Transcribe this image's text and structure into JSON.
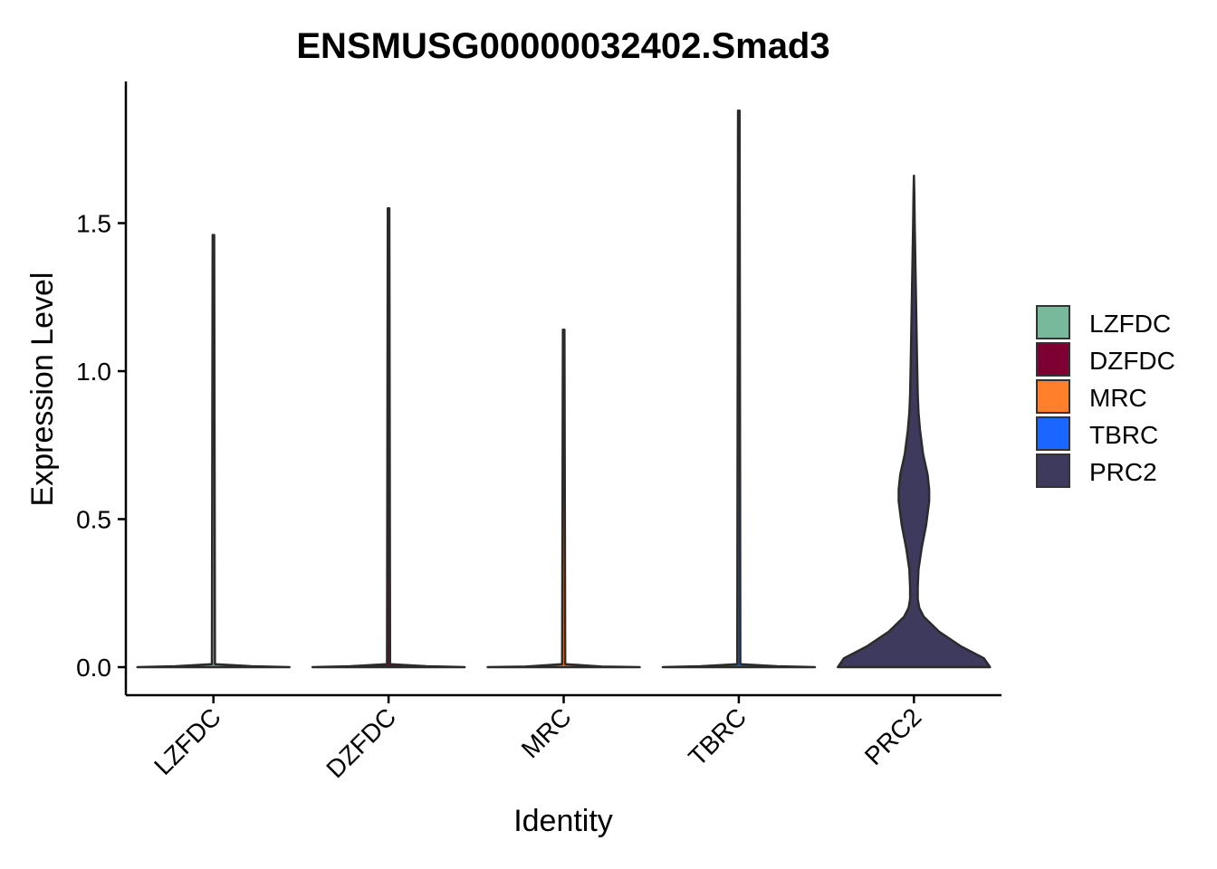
{
  "chart_data": {
    "type": "violin",
    "title": "ENSMUSG00000032402.Smad3",
    "xlabel": "Identity",
    "ylabel": "Expression Level",
    "categories": [
      "LZFDC",
      "DZFDC",
      "MRC",
      "TBRC",
      "PRC2"
    ],
    "y_ticks": [
      "0.0",
      "0.5",
      "1.0",
      "1.5"
    ],
    "ylim": [
      -0.09,
      1.96
    ],
    "grid": false,
    "legend_position": "right",
    "series": [
      {
        "name": "LZFDC",
        "color": "#78B99C",
        "max": 1.46,
        "density": [
          [
            0,
            1.0
          ],
          [
            0.003,
            0.5
          ],
          [
            0.01,
            0.02
          ],
          [
            1.46,
            0.01
          ]
        ]
      },
      {
        "name": "DZFDC",
        "color": "#7D0033",
        "max": 1.55,
        "density": [
          [
            0,
            1.0
          ],
          [
            0.003,
            0.5
          ],
          [
            0.01,
            0.02
          ],
          [
            1.55,
            0.01
          ]
        ]
      },
      {
        "name": "MRC",
        "color": "#FF7F2A",
        "max": 1.14,
        "density": [
          [
            0,
            1.0
          ],
          [
            0.002,
            0.5
          ],
          [
            0.01,
            0.02
          ],
          [
            1.14,
            0.01
          ]
        ]
      },
      {
        "name": "TBRC",
        "color": "#1A66FF",
        "max": 1.88,
        "density": [
          [
            0,
            1.0
          ],
          [
            0.003,
            0.5
          ],
          [
            0.01,
            0.02
          ],
          [
            1.88,
            0.01
          ]
        ]
      },
      {
        "name": "PRC2",
        "color": "#3E3A5E",
        "max": 1.66,
        "density": [
          [
            0,
            1.0
          ],
          [
            0.03,
            0.92
          ],
          [
            0.07,
            0.62
          ],
          [
            0.12,
            0.33
          ],
          [
            0.17,
            0.13
          ],
          [
            0.2,
            0.07
          ],
          [
            0.23,
            0.05
          ],
          [
            0.27,
            0.05
          ],
          [
            0.33,
            0.06
          ],
          [
            0.4,
            0.1
          ],
          [
            0.48,
            0.16
          ],
          [
            0.56,
            0.2
          ],
          [
            0.6,
            0.2
          ],
          [
            0.65,
            0.18
          ],
          [
            0.72,
            0.12
          ],
          [
            0.8,
            0.08
          ],
          [
            0.86,
            0.06
          ],
          [
            0.92,
            0.05
          ],
          [
            1.05,
            0.04
          ],
          [
            1.2,
            0.03
          ],
          [
            1.35,
            0.02
          ],
          [
            1.5,
            0.01
          ],
          [
            1.6,
            0.005
          ],
          [
            1.66,
            0.0
          ]
        ]
      }
    ]
  }
}
